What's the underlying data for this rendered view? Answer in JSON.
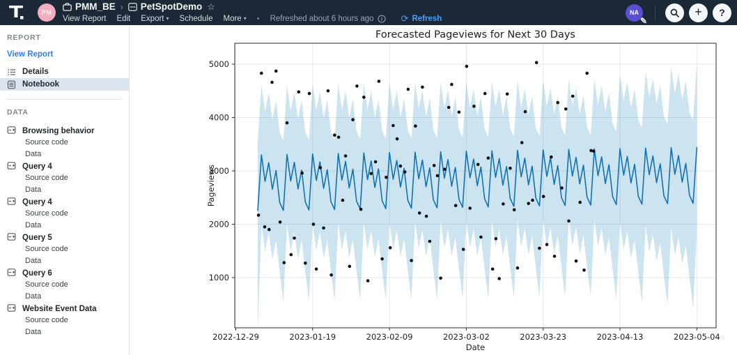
{
  "navbar": {
    "workspace_avatar": "PM",
    "breadcrumb": {
      "workspace": "PMM_BE",
      "separator": "›",
      "report": "PetSpotDemo",
      "star": "☆"
    },
    "menu": [
      {
        "label": "View Report",
        "caret": false
      },
      {
        "label": "Edit",
        "caret": false
      },
      {
        "label": "Export",
        "caret": true
      },
      {
        "label": "Schedule",
        "caret": false
      },
      {
        "label": "More",
        "caret": true
      }
    ],
    "separator_dot": "•",
    "refreshed_text": "Refreshed about 6 hours ago",
    "refresh": {
      "label": "Refresh",
      "glyph": "⟳",
      "color": "#4a9df8"
    },
    "user_avatar": "NA",
    "pencil_glyph": "✎",
    "plus_glyph": "+",
    "help_glyph": "?"
  },
  "sidebar": {
    "report_header": "REPORT",
    "view_report_link": "View Report",
    "report_items": [
      {
        "label": "Details",
        "icon": "list-icon",
        "active": false
      },
      {
        "label": "Notebook",
        "icon": "notebook-icon",
        "active": true
      }
    ],
    "data_header": "DATA",
    "sub_items": [
      "Source code",
      "Data"
    ],
    "data_groups": [
      {
        "name": "Browsing behavior"
      },
      {
        "name": "Query 4"
      },
      {
        "name": "Query 4"
      },
      {
        "name": "Query 5"
      },
      {
        "name": "Query 6"
      },
      {
        "name": "Website Event Data"
      }
    ]
  },
  "chart_data": {
    "type": "line",
    "title": "Forecasted Pageviews for Next 30 Days",
    "xlabel": "Date",
    "ylabel": "Pageviews",
    "line_color": "#1072b4",
    "band_color": "rgba(0,114,178,0.2)",
    "dot_color": "#111111",
    "grid": true,
    "legend": "none",
    "yticks": [
      1000,
      2000,
      3000,
      4000,
      5000
    ],
    "ylim": [
      60,
      5390
    ],
    "xticks": [
      "2022-12-29",
      "2023-01-19",
      "2023-02-09",
      "2023-03-02",
      "2023-03-23",
      "2023-04-13",
      "2023-05-04"
    ],
    "xtick_interval_days": 21,
    "series_start_date": "2023-01-04",
    "series_start_offset_days": 6,
    "days": 121,
    "history_days": 91,
    "forecast_model": {
      "weekly_pattern_yhat": [
        2250,
        3300,
        2800,
        3150,
        2650,
        3000,
        2400
      ],
      "trend_per_day": 1.2,
      "band_offset": 1310,
      "deep_day_extra_lower": 400,
      "forecast_widen_per_day": 9,
      "start_dip": 530
    },
    "actuals_day_value": [
      [
        0.2,
        2170
      ],
      [
        1.0,
        4830
      ],
      [
        1.9,
        1950
      ],
      [
        3.1,
        1900
      ],
      [
        3.9,
        4660
      ],
      [
        5.0,
        4870
      ],
      [
        6.1,
        2040
      ],
      [
        7.2,
        1280
      ],
      [
        8.0,
        3900
      ],
      [
        9.1,
        1430
      ],
      [
        10.0,
        1740
      ],
      [
        11.2,
        4480
      ],
      [
        12.1,
        2960
      ],
      [
        13.0,
        1270
      ],
      [
        14.1,
        4450
      ],
      [
        15.2,
        2000
      ],
      [
        16.0,
        1160
      ],
      [
        17.1,
        3060
      ],
      [
        18.0,
        1930
      ],
      [
        19.2,
        4500
      ],
      [
        20.1,
        1050
      ],
      [
        21.0,
        3670
      ],
      [
        22.1,
        3630
      ],
      [
        23.2,
        2450
      ],
      [
        24.0,
        3280
      ],
      [
        25.1,
        1210
      ],
      [
        26.0,
        3960
      ],
      [
        27.1,
        4590
      ],
      [
        28.2,
        2280
      ],
      [
        29.0,
        4380
      ],
      [
        30.1,
        940
      ],
      [
        31.0,
        2950
      ],
      [
        32.2,
        3170
      ],
      [
        33.1,
        4680
      ],
      [
        34.0,
        1350
      ],
      [
        35.1,
        2880
      ],
      [
        36.2,
        1560
      ],
      [
        37.0,
        3850
      ],
      [
        38.1,
        3600
      ],
      [
        39.0,
        3090
      ],
      [
        40.2,
        2980
      ],
      [
        41.1,
        4530
      ],
      [
        42.0,
        1320
      ],
      [
        43.1,
        3840
      ],
      [
        44.2,
        2210
      ],
      [
        45.0,
        4570
      ],
      [
        46.1,
        2150
      ],
      [
        47.0,
        1680
      ],
      [
        48.2,
        3100
      ],
      [
        49.1,
        2910
      ],
      [
        50.0,
        990
      ],
      [
        51.1,
        3030
      ],
      [
        52.2,
        4190
      ],
      [
        53.0,
        4620
      ],
      [
        54.1,
        2350
      ],
      [
        55.0,
        4100
      ],
      [
        56.2,
        1530
      ],
      [
        57.1,
        4960
      ],
      [
        58.0,
        2300
      ],
      [
        59.1,
        4210
      ],
      [
        60.2,
        3120
      ],
      [
        61.0,
        1760
      ],
      [
        62.1,
        4450
      ],
      [
        63.0,
        3240
      ],
      [
        64.2,
        1160
      ],
      [
        65.1,
        1730
      ],
      [
        66.0,
        980
      ],
      [
        67.1,
        2380
      ],
      [
        68.2,
        4440
      ],
      [
        69.0,
        3050
      ],
      [
        70.1,
        2270
      ],
      [
        71.0,
        1180
      ],
      [
        72.2,
        3530
      ],
      [
        73.1,
        4110
      ],
      [
        74.0,
        2390
      ],
      [
        75.1,
        2450
      ],
      [
        76.2,
        5030
      ],
      [
        77.0,
        1550
      ],
      [
        78.1,
        2520
      ],
      [
        79.0,
        1620
      ],
      [
        80.2,
        3260
      ],
      [
        81.1,
        1400
      ],
      [
        82.0,
        4280
      ],
      [
        83.1,
        2680
      ],
      [
        84.2,
        4160
      ],
      [
        85.0,
        2060
      ],
      [
        86.1,
        4400
      ],
      [
        87.0,
        1310
      ],
      [
        88.1,
        2410
      ],
      [
        89.2,
        1140
      ],
      [
        90.0,
        4830
      ],
      [
        91.1,
        3380
      ],
      [
        91.8,
        3370
      ]
    ]
  }
}
